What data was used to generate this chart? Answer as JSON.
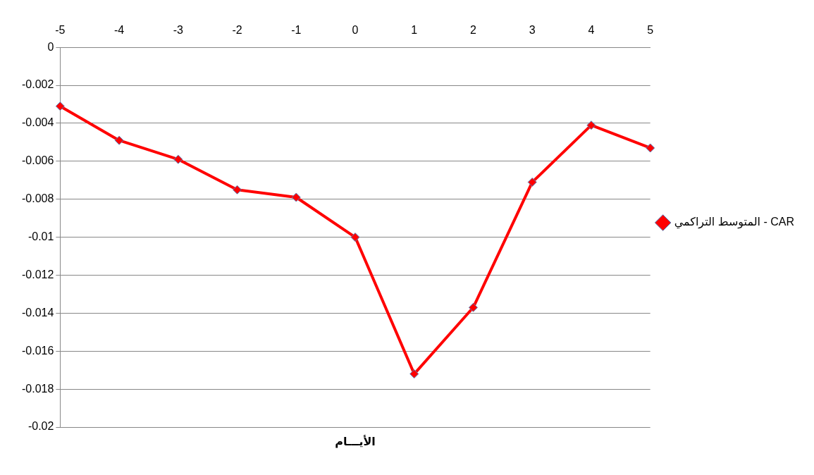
{
  "chart_data": {
    "type": "line",
    "xlabel": "الأيـــام",
    "categories": [
      "-5",
      "-4",
      "-3",
      "-2",
      "-1",
      "0",
      "1",
      "2",
      "3",
      "4",
      "5"
    ],
    "series": [
      {
        "name": "المتوسط التراكمي - CAR",
        "color": "#ff0000",
        "values": [
          -0.0031,
          -0.0049,
          -0.0059,
          -0.0075,
          -0.0079,
          -0.01,
          -0.0172,
          -0.0137,
          -0.0071,
          -0.0041,
          -0.0053
        ]
      }
    ],
    "ylim": [
      -0.02,
      0
    ],
    "yticks": [
      0,
      -0.002,
      -0.004,
      -0.006,
      -0.008,
      -0.01,
      -0.012,
      -0.014,
      -0.016,
      -0.018,
      -0.02
    ],
    "grid": "y",
    "legend": "right",
    "marker": "diamond",
    "line_style": "solid"
  }
}
